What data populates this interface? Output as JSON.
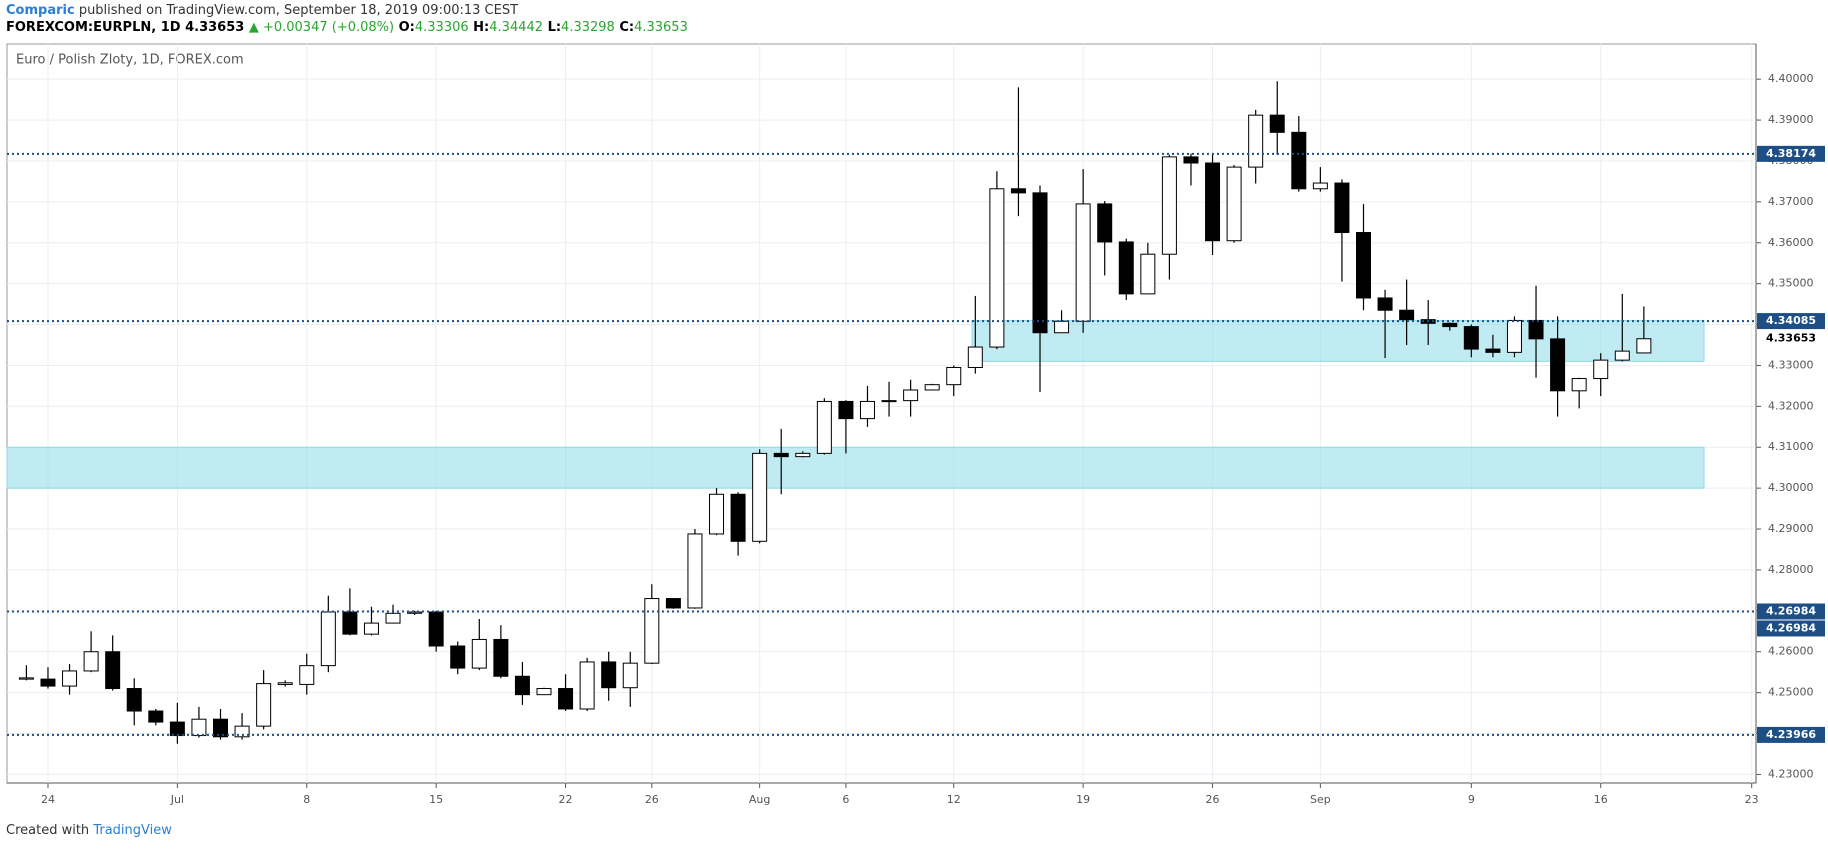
{
  "header": {
    "author": "Comparic",
    "published": "published on TradingView.com, September 18, 2019 09:00:13 CEST",
    "symbol": "FOREXCOM:EURPLN, 1D",
    "last": "4.33653",
    "change": "▲ +0.00347 (+0.08%)",
    "ohlc": [
      {
        "label": "O:",
        "value": "4.33306"
      },
      {
        "label": "H:",
        "value": "4.34442"
      },
      {
        "label": "L:",
        "value": "4.33298"
      },
      {
        "label": "C:",
        "value": "4.33653"
      }
    ]
  },
  "footer": {
    "text": "Created with",
    "brand": "TradingView"
  },
  "chart_data": {
    "type": "candlestick",
    "title": "Euro / Polish Zloty, 1D, FOREX.com",
    "open": [
      4.2533,
      4.2533,
      4.2516,
      4.2553,
      4.26,
      4.251,
      4.2455,
      4.2428,
      4.2395,
      4.2435,
      4.2392,
      4.2418,
      4.252,
      4.252,
      4.2566,
      4.2697,
      4.2643,
      4.267,
      4.2694,
      4.2697,
      4.2614,
      4.256,
      4.263,
      4.254,
      4.2495,
      4.251,
      4.246,
      4.2575,
      4.2512,
      4.2572,
      4.273,
      4.2707,
      4.2888,
      4.2985,
      4.287,
      4.3085,
      4.3077,
      4.3085,
      4.3212,
      4.317,
      4.3212,
      4.3214,
      4.324,
      4.3253,
      4.3295,
      4.3345,
      4.3732,
      4.3722,
      4.338,
      4.3408,
      4.3695,
      4.3602,
      4.3475,
      4.3572,
      4.381,
      4.3795,
      4.3605,
      4.3785,
      4.3912,
      4.387,
      4.3732,
      4.3746,
      4.3625,
      4.3465,
      4.3435,
      4.3412,
      4.3403,
      4.3395,
      4.334,
      4.3332,
      4.341,
      4.3365,
      4.3238,
      4.3268,
      4.3313,
      4.33306
    ],
    "high": [
      4.2567,
      4.2562,
      4.257,
      4.265,
      4.264,
      4.2535,
      4.246,
      4.2475,
      4.2465,
      4.246,
      4.245,
      4.2555,
      4.253,
      4.2595,
      4.2737,
      4.2755,
      4.271,
      4.2715,
      4.27,
      4.27,
      4.2625,
      4.268,
      4.2665,
      4.2575,
      4.2512,
      4.2545,
      4.2585,
      4.26,
      4.26,
      4.2765,
      4.273,
      4.29,
      4.3,
      4.299,
      4.3095,
      4.3145,
      4.309,
      4.322,
      4.3215,
      4.325,
      4.326,
      4.3265,
      4.3255,
      4.33,
      4.347,
      4.3775,
      4.398,
      4.374,
      4.3435,
      4.378,
      4.3702,
      4.361,
      4.36,
      4.3815,
      4.3818,
      4.3815,
      4.379,
      4.3925,
      4.3995,
      4.391,
      4.3785,
      4.3755,
      4.3695,
      4.3485,
      4.351,
      4.346,
      4.3405,
      4.34,
      4.3375,
      4.342,
      4.3495,
      4.342,
      4.327,
      4.333,
      4.3475,
      4.34442
    ],
    "low": [
      4.253,
      4.251,
      4.2495,
      4.255,
      4.2505,
      4.242,
      4.242,
      4.2375,
      4.239,
      4.2385,
      4.2385,
      4.241,
      4.2515,
      4.2495,
      4.255,
      4.264,
      4.264,
      4.267,
      4.269,
      4.26,
      4.2545,
      4.2555,
      4.2535,
      4.247,
      4.2495,
      4.2455,
      4.2455,
      4.248,
      4.2465,
      4.257,
      4.2705,
      4.2705,
      4.2885,
      4.2835,
      4.2865,
      4.2985,
      4.3075,
      4.3082,
      4.3085,
      4.315,
      4.3175,
      4.3175,
      4.324,
      4.3225,
      4.328,
      4.334,
      4.3665,
      4.3235,
      4.338,
      4.338,
      4.352,
      4.346,
      4.3475,
      4.351,
      4.374,
      4.357,
      4.36,
      4.3745,
      4.3815,
      4.3725,
      4.3725,
      4.3505,
      4.3435,
      4.3318,
      4.335,
      4.335,
      4.3385,
      4.332,
      4.332,
      4.332,
      4.327,
      4.3175,
      4.3195,
      4.3225,
      4.331,
      4.33298
    ],
    "close": [
      4.2536,
      4.2516,
      4.2553,
      4.26,
      4.251,
      4.2455,
      4.2428,
      4.2395,
      4.2435,
      4.2392,
      4.2418,
      4.2522,
      4.2524,
      4.2566,
      4.2697,
      4.2643,
      4.267,
      4.2694,
      4.2697,
      4.2614,
      4.256,
      4.263,
      4.254,
      4.2495,
      4.251,
      4.246,
      4.2575,
      4.2512,
      4.2572,
      4.273,
      4.2707,
      4.2888,
      4.2985,
      4.287,
      4.3085,
      4.3077,
      4.3085,
      4.3212,
      4.317,
      4.3212,
      4.3214,
      4.324,
      4.3253,
      4.3295,
      4.3345,
      4.3732,
      4.3722,
      4.338,
      4.3408,
      4.3695,
      4.3602,
      4.3475,
      4.3572,
      4.381,
      4.3795,
      4.3605,
      4.3785,
      4.3912,
      4.387,
      4.3732,
      4.3746,
      4.3625,
      4.3465,
      4.3435,
      4.3412,
      4.3403,
      4.3395,
      4.334,
      4.3332,
      4.341,
      4.3365,
      4.3238,
      4.3268,
      4.3313,
      4.3335,
      4.33653
    ],
    "up_color": "#ffffff",
    "down_color": "#000000",
    "xlim": [
      -0.9,
      80.2
    ],
    "xticks": [
      {
        "value": 1,
        "label": "24"
      },
      {
        "value": 7,
        "label": "Jul"
      },
      {
        "value": 13,
        "label": "8"
      },
      {
        "value": 19,
        "label": "15"
      },
      {
        "value": 25,
        "label": "22"
      },
      {
        "value": 29,
        "label": "26"
      },
      {
        "value": 34,
        "label": "Aug"
      },
      {
        "value": 38,
        "label": "6"
      },
      {
        "value": 43,
        "label": "12"
      },
      {
        "value": 49,
        "label": "19"
      },
      {
        "value": 55,
        "label": "26"
      },
      {
        "value": 60,
        "label": "Sep"
      },
      {
        "value": 67,
        "label": "9"
      },
      {
        "value": 73,
        "label": "16"
      },
      {
        "value": 80,
        "label": "23"
      }
    ],
    "ylim": [
      4.2279,
      4.4086
    ],
    "yticks": [
      {
        "value": 4.23,
        "label": "4.23000"
      },
      {
        "value": 4.24,
        "label": "4.24000"
      },
      {
        "value": 4.25,
        "label": "4.25000"
      },
      {
        "value": 4.26,
        "label": "4.26000"
      },
      {
        "value": 4.27,
        "label": "4.27000"
      },
      {
        "value": 4.28,
        "label": "4.28000"
      },
      {
        "value": 4.29,
        "label": "4.29000"
      },
      {
        "value": 4.3,
        "label": "4.30000"
      },
      {
        "value": 4.31,
        "label": "4.31000"
      },
      {
        "value": 4.32,
        "label": "4.32000"
      },
      {
        "value": 4.33,
        "label": "4.33000"
      },
      {
        "value": 4.34,
        "label": "4.34000"
      },
      {
        "value": 4.35,
        "label": "4.35000"
      },
      {
        "value": 4.36,
        "label": "4.36000"
      },
      {
        "value": 4.37,
        "label": "4.37000"
      },
      {
        "value": 4.38,
        "label": "4.38000"
      },
      {
        "value": 4.39,
        "label": "4.39000"
      },
      {
        "value": 4.4,
        "label": "4.40000"
      }
    ],
    "grid": true,
    "levels": [
      4.38174,
      4.34085,
      4.26984,
      4.23966
    ],
    "level_color": "#1d4f86",
    "zones": [
      {
        "from": 4.331,
        "to": 4.341
      },
      {
        "from": 4.3,
        "to": 4.31
      }
    ],
    "zone_color": "#8ddbe8"
  }
}
